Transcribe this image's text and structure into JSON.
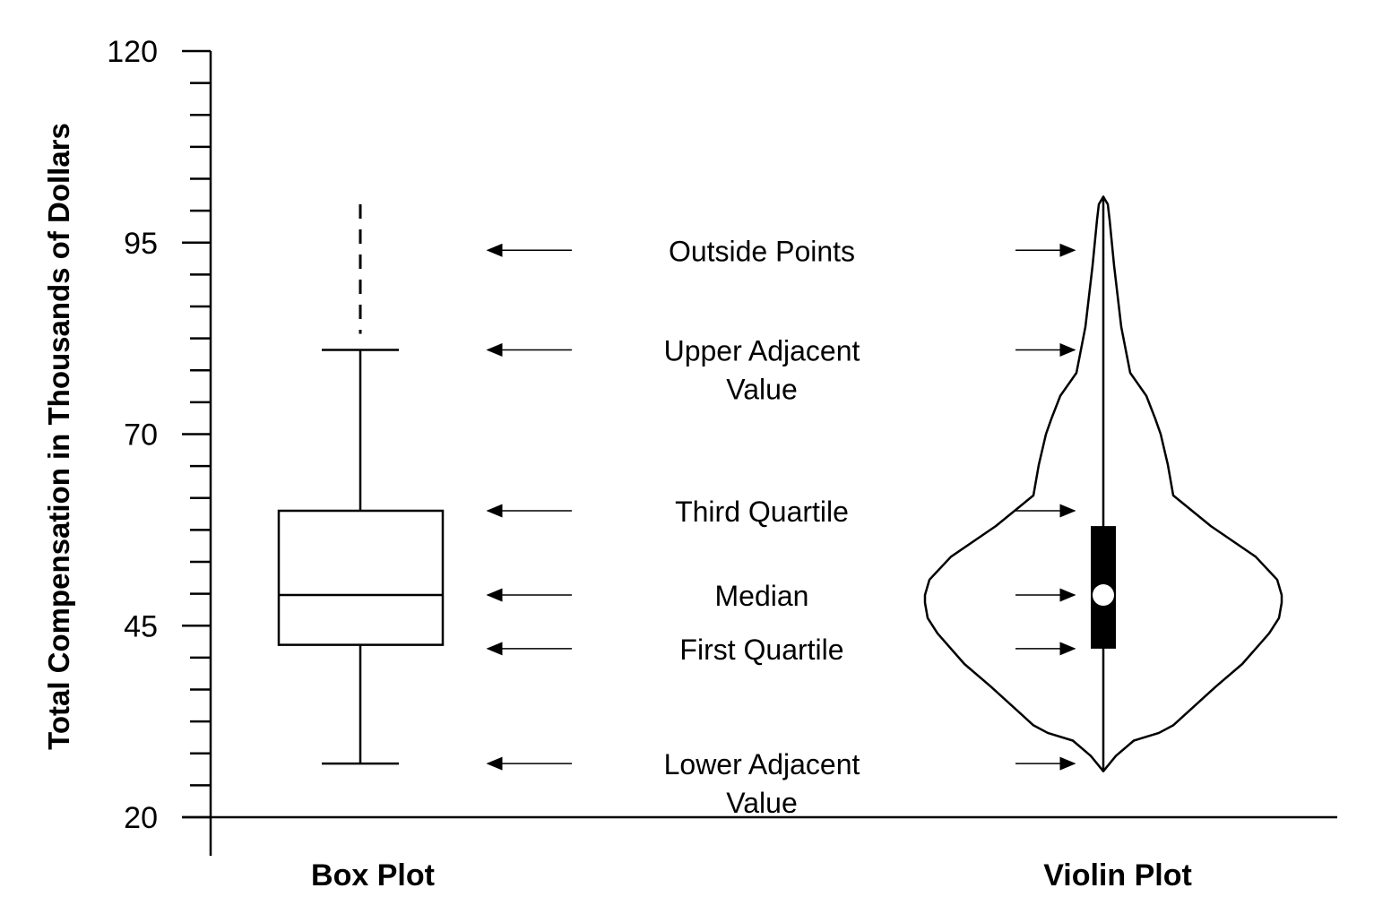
{
  "chart_data": {
    "type": "box",
    "ylabel": "Total Compensation in Thousands of Dollars",
    "ylim": [
      20,
      120
    ],
    "major_ticks": [
      20,
      45,
      70,
      95,
      120
    ],
    "minor_tick_step": 4.17,
    "categories": [
      "Box Plot",
      "Violin Plot"
    ],
    "box_plot": {
      "lower_adjacent": 27,
      "first_quartile": 42.5,
      "median": 49,
      "third_quartile": 60,
      "upper_adjacent": 81,
      "outside_points_top": 100
    },
    "violin_plot": {
      "min": 26,
      "first_quartile": 42,
      "median": 49,
      "third_quartile": 58,
      "max": 101
    },
    "annotations": [
      {
        "id": "outside",
        "lines": [
          "Outside Points"
        ],
        "value": 94
      },
      {
        "id": "upper",
        "lines": [
          "Upper Adjacent",
          "Value"
        ],
        "value": 81
      },
      {
        "id": "q3",
        "lines": [
          "Third Quartile"
        ],
        "value": 60
      },
      {
        "id": "median",
        "lines": [
          "Median"
        ],
        "value": 49
      },
      {
        "id": "q1",
        "lines": [
          "First Quartile"
        ],
        "value": 42
      },
      {
        "id": "lower",
        "lines": [
          "Lower Adjacent",
          "Value"
        ],
        "value": 27
      }
    ],
    "grid": false,
    "legend": "none"
  }
}
